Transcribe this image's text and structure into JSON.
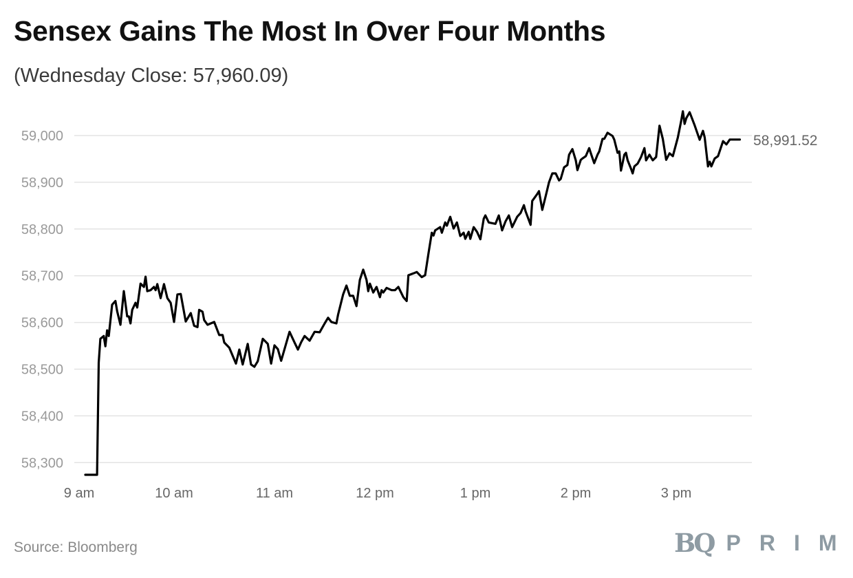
{
  "chart_data": {
    "type": "line",
    "title": "Sensex Gains The Most In Over Four Months",
    "subtitle": "(Wednesday Close: 57,960.09)",
    "xlabel": "",
    "ylabel": "",
    "ylim": [
      58300,
      59000
    ],
    "yticks": [
      58300,
      58400,
      58500,
      58600,
      58700,
      58800,
      58900,
      59000
    ],
    "ytick_labels": [
      "58,300",
      "58,400",
      "58,500",
      "58,600",
      "58,700",
      "58,800",
      "58,900",
      "59,000"
    ],
    "xticks": [
      "9:00",
      "10:00",
      "11:00",
      "12:00",
      "13:00",
      "14:00",
      "15:00"
    ],
    "xtick_labels": [
      "9 am",
      "10 am",
      "11 am",
      "12 pm",
      "1 pm",
      "2 pm",
      "3 pm"
    ],
    "grid": "horizontal",
    "line_color": "#000000",
    "end_label": "58,991.52",
    "points": [
      [
        "9:07",
        58274
      ],
      [
        "9:14",
        58274
      ],
      [
        "9:15",
        58514
      ],
      [
        "9:16",
        58565
      ],
      [
        "9:18",
        58571
      ],
      [
        "9:19",
        58549
      ],
      [
        "9:20",
        58583
      ],
      [
        "9:21",
        58571
      ],
      [
        "9:23",
        58638
      ],
      [
        "9:25",
        58646
      ],
      [
        "9:26",
        58624
      ],
      [
        "9:28",
        58595
      ],
      [
        "9:30",
        58667
      ],
      [
        "9:32",
        58613
      ],
      [
        "9:33",
        58613
      ],
      [
        "9:34",
        58598
      ],
      [
        "9:35",
        58627
      ],
      [
        "9:37",
        58642
      ],
      [
        "9:38",
        58632
      ],
      [
        "9:40",
        58683
      ],
      [
        "9:42",
        58676
      ],
      [
        "9:43",
        58698
      ],
      [
        "9:44",
        58667
      ],
      [
        "9:46",
        58669
      ],
      [
        "9:48",
        58676
      ],
      [
        "9:49",
        58669
      ],
      [
        "9:50",
        58682
      ],
      [
        "9:52",
        58652
      ],
      [
        "9:54",
        58682
      ],
      [
        "9:56",
        58652
      ],
      [
        "9:58",
        58642
      ],
      [
        "10:00",
        58601
      ],
      [
        "10:02",
        58660
      ],
      [
        "10:04",
        58661
      ],
      [
        "10:07",
        58602
      ],
      [
        "10:10",
        58620
      ],
      [
        "10:12",
        58593
      ],
      [
        "10:14",
        58590
      ],
      [
        "10:15",
        58627
      ],
      [
        "10:17",
        58623
      ],
      [
        "10:18",
        58605
      ],
      [
        "10:20",
        58595
      ],
      [
        "10:24",
        58601
      ],
      [
        "10:27",
        58573
      ],
      [
        "10:29",
        58573
      ],
      [
        "10:30",
        58557
      ],
      [
        "10:33",
        58546
      ],
      [
        "10:37",
        58512
      ],
      [
        "10:39",
        58542
      ],
      [
        "10:41",
        58510
      ],
      [
        "10:44",
        58554
      ],
      [
        "10:46",
        58510
      ],
      [
        "10:48",
        58505
      ],
      [
        "10:50",
        58517
      ],
      [
        "10:53",
        58565
      ],
      [
        "10:56",
        58554
      ],
      [
        "10:58",
        58512
      ],
      [
        "11:00",
        58551
      ],
      [
        "11:02",
        58543
      ],
      [
        "11:04",
        58518
      ],
      [
        "11:09",
        58580
      ],
      [
        "11:12",
        58557
      ],
      [
        "11:14",
        58542
      ],
      [
        "11:16",
        58558
      ],
      [
        "11:18",
        58571
      ],
      [
        "11:21",
        58561
      ],
      [
        "11:24",
        58580
      ],
      [
        "11:27",
        58579
      ],
      [
        "11:30",
        58598
      ],
      [
        "11:32",
        58610
      ],
      [
        "11:34",
        58601
      ],
      [
        "11:37",
        58598
      ],
      [
        "11:38",
        58617
      ],
      [
        "11:41",
        58660
      ],
      [
        "11:43",
        58679
      ],
      [
        "11:45",
        58657
      ],
      [
        "11:47",
        58657
      ],
      [
        "11:49",
        58635
      ],
      [
        "11:51",
        58691
      ],
      [
        "11:53",
        58713
      ],
      [
        "11:55",
        58691
      ],
      [
        "11:56",
        58667
      ],
      [
        "11:57",
        58683
      ],
      [
        "11:59",
        58664
      ],
      [
        "12:01",
        58676
      ],
      [
        "12:03",
        58654
      ],
      [
        "12:04",
        58669
      ],
      [
        "12:05",
        58664
      ],
      [
        "12:07",
        58674
      ],
      [
        "12:10",
        58669
      ],
      [
        "12:12",
        58669
      ],
      [
        "12:14",
        58676
      ],
      [
        "12:17",
        58654
      ],
      [
        "12:19",
        58646
      ],
      [
        "12:20",
        58701
      ],
      [
        "12:23",
        58705
      ],
      [
        "12:25",
        58708
      ],
      [
        "12:28",
        58697
      ],
      [
        "12:30",
        58701
      ],
      [
        "12:32",
        58748
      ],
      [
        "12:34",
        58792
      ],
      [
        "12:35",
        58786
      ],
      [
        "12:36",
        58797
      ],
      [
        "12:39",
        58804
      ],
      [
        "12:40",
        58792
      ],
      [
        "12:42",
        58814
      ],
      [
        "12:43",
        58807
      ],
      [
        "12:45",
        58826
      ],
      [
        "12:47",
        58801
      ],
      [
        "12:49",
        58814
      ],
      [
        "12:51",
        58785
      ],
      [
        "12:53",
        58792
      ],
      [
        "12:54",
        58779
      ],
      [
        "12:56",
        58794
      ],
      [
        "12:57",
        58779
      ],
      [
        "12:59",
        58804
      ],
      [
        "13:01",
        58794
      ],
      [
        "13:03",
        58778
      ],
      [
        "13:05",
        58822
      ],
      [
        "13:06",
        58829
      ],
      [
        "13:08",
        58814
      ],
      [
        "13:12",
        58811
      ],
      [
        "13:14",
        58829
      ],
      [
        "13:16",
        58797
      ],
      [
        "13:18",
        58816
      ],
      [
        "13:20",
        58829
      ],
      [
        "13:22",
        58804
      ],
      [
        "13:25",
        58826
      ],
      [
        "13:27",
        58834
      ],
      [
        "13:29",
        58851
      ],
      [
        "13:30",
        58838
      ],
      [
        "13:33",
        58809
      ],
      [
        "13:34",
        58860
      ],
      [
        "13:37",
        58875
      ],
      [
        "13:38",
        58881
      ],
      [
        "13:40",
        58841
      ],
      [
        "13:42",
        58870
      ],
      [
        "13:44",
        58900
      ],
      [
        "13:46",
        58919
      ],
      [
        "13:48",
        58919
      ],
      [
        "13:50",
        58904
      ],
      [
        "13:51",
        58907
      ],
      [
        "13:53",
        58932
      ],
      [
        "13:55",
        58937
      ],
      [
        "13:56",
        58959
      ],
      [
        "13:58",
        58971
      ],
      [
        "14:00",
        58947
      ],
      [
        "14:01",
        58926
      ],
      [
        "14:03",
        58948
      ],
      [
        "14:04",
        58951
      ],
      [
        "14:06",
        58956
      ],
      [
        "14:08",
        58973
      ],
      [
        "14:09",
        58962
      ],
      [
        "14:11",
        58941
      ],
      [
        "14:13",
        58959
      ],
      [
        "14:14",
        58966
      ],
      [
        "14:16",
        58993
      ],
      [
        "14:17",
        58993
      ],
      [
        "14:19",
        59006
      ],
      [
        "14:22",
        58999
      ],
      [
        "14:23",
        58991
      ],
      [
        "14:25",
        58963
      ],
      [
        "14:26",
        58966
      ],
      [
        "14:27",
        58925
      ],
      [
        "14:29",
        58959
      ],
      [
        "14:30",
        58963
      ],
      [
        "14:31",
        58947
      ],
      [
        "14:33",
        58929
      ],
      [
        "14:34",
        58919
      ],
      [
        "14:35",
        58934
      ],
      [
        "14:37",
        58940
      ],
      [
        "14:39",
        58954
      ],
      [
        "14:41",
        58973
      ],
      [
        "14:42",
        58947
      ],
      [
        "14:44",
        58959
      ],
      [
        "14:46",
        58947
      ],
      [
        "14:48",
        58954
      ],
      [
        "14:50",
        59021
      ],
      [
        "14:52",
        58993
      ],
      [
        "14:54",
        58948
      ],
      [
        "14:56",
        58962
      ],
      [
        "14:58",
        58956
      ],
      [
        "15:01",
        58996
      ],
      [
        "15:03",
        59032
      ],
      [
        "15:04",
        59052
      ],
      [
        "15:05",
        59025
      ],
      [
        "15:06",
        59037
      ],
      [
        "15:08",
        59050
      ],
      [
        "15:11",
        59022
      ],
      [
        "15:14",
        58991
      ],
      [
        "15:16",
        59010
      ],
      [
        "15:17",
        58996
      ],
      [
        "15:19",
        58934
      ],
      [
        "15:20",
        58944
      ],
      [
        "15:21",
        58934
      ],
      [
        "15:23",
        58951
      ],
      [
        "15:25",
        58956
      ],
      [
        "15:28",
        58988
      ],
      [
        "15:30",
        58981
      ],
      [
        "15:32",
        58991.52
      ],
      [
        "15:38",
        58991.52
      ]
    ]
  },
  "footer": {
    "source": "Source: Bloomberg",
    "logo_text": "BQ PRIME"
  }
}
